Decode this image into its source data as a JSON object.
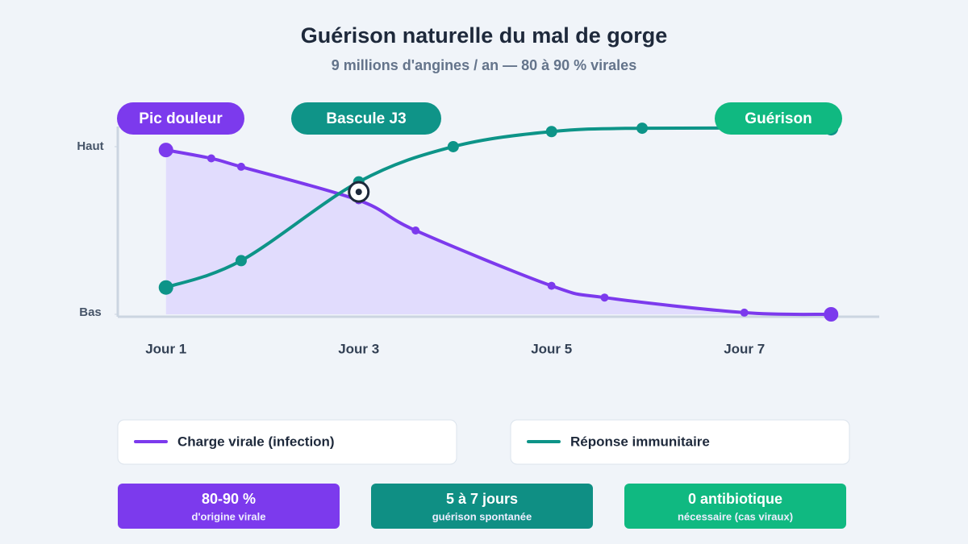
{
  "chart_data": {
    "type": "line",
    "title": "Guérison naturelle du mal de gorge",
    "subtitle": "9 millions d'angines / an — 80 à 90 % virales",
    "xlim": [
      0.5,
      8.4
    ],
    "xticks": [
      {
        "value": 1,
        "label": "Jour 1"
      },
      {
        "value": 3,
        "label": "Jour 3"
      },
      {
        "value": 5,
        "label": "Jour 5"
      },
      {
        "value": 7,
        "label": "Jour 7"
      }
    ],
    "ylim": [
      0,
      112
    ],
    "yticks": [
      {
        "value": 0,
        "label": "Bas"
      },
      {
        "value": 100,
        "label": "Haut"
      }
    ],
    "series": [
      {
        "name": "Charge virale (infection)",
        "color": "#7c3aed",
        "area": true,
        "x": [
          1,
          1.47,
          1.78,
          3,
          3.59,
          5,
          5.55,
          7,
          7.9
        ],
        "values": [
          98,
          93,
          88,
          68,
          50,
          17,
          10,
          1,
          0
        ]
      },
      {
        "name": "Réponse immunitaire",
        "color": "#0d9488",
        "area": false,
        "x": [
          1,
          1.78,
          3,
          3.98,
          5,
          5.94,
          7.9
        ],
        "values": [
          16,
          32,
          79,
          100,
          109,
          111,
          111
        ]
      }
    ],
    "crossover": {
      "x": 3,
      "y": 73
    },
    "annotations": [
      {
        "text": "Pic douleur",
        "color": "#7c3aed"
      },
      {
        "text": "Bascule J3",
        "color": "#0f9488"
      },
      {
        "text": "Guérison",
        "color": "#10b981"
      }
    ],
    "stats": [
      {
        "value": "80-90 %",
        "label": "d'origine virale",
        "color": "#7c3aed"
      },
      {
        "value": "5 à 7 jours",
        "label": "guérison spontanée",
        "color": "#0f8f84"
      },
      {
        "value": "0 antibiotique",
        "label": "nécessaire (cas viraux)",
        "color": "#10b981"
      }
    ]
  }
}
